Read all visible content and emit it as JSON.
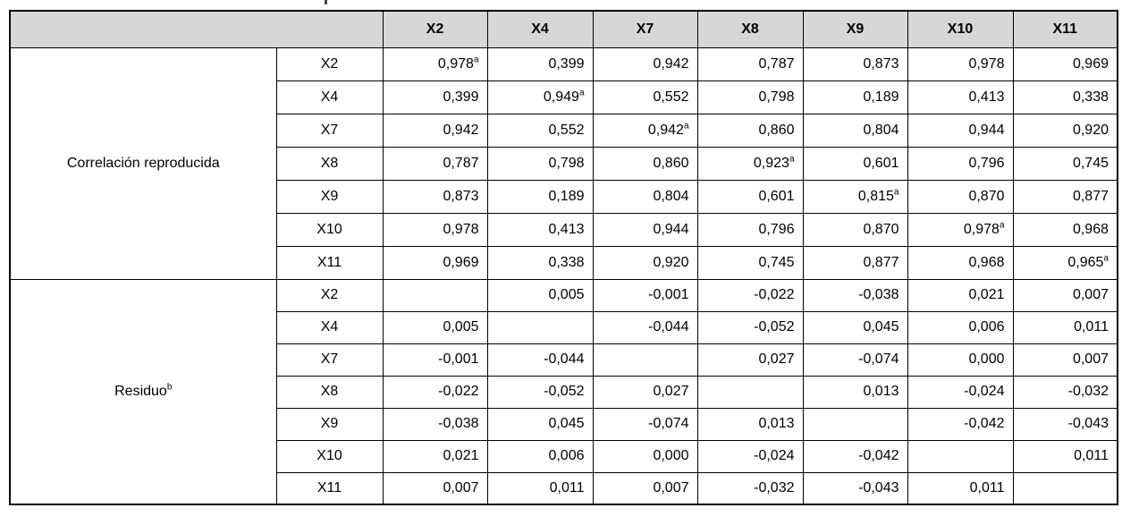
{
  "colors": {
    "header_bg": "#d7d7d7",
    "border": "#000000",
    "text": "#000000"
  },
  "table": {
    "corner_label": "",
    "columns": [
      "X2",
      "X4",
      "X7",
      "X8",
      "X9",
      "X10",
      "X11"
    ],
    "sections": [
      {
        "label": "Correlación reproducida",
        "rows": [
          {
            "label": "X2",
            "values": [
              "0,978^a",
              "0,399",
              "0,942",
              "0,787",
              "0,873",
              "0,978",
              "0,969"
            ]
          },
          {
            "label": "X4",
            "values": [
              "0,399",
              "0,949^a",
              "0,552",
              "0,798",
              "0,189",
              "0,413",
              "0,338"
            ]
          },
          {
            "label": "X7",
            "values": [
              "0,942",
              "0,552",
              "0,942^a",
              "0,860",
              "0,804",
              "0,944",
              "0,920"
            ]
          },
          {
            "label": "X8",
            "values": [
              "0,787",
              "0,798",
              "0,860",
              "0,923^a",
              "0,601",
              "0,796",
              "0,745"
            ]
          },
          {
            "label": "X9",
            "values": [
              "0,873",
              "0,189",
              "0,804",
              "0,601",
              "0,815^a",
              "0,870",
              "0,877"
            ]
          },
          {
            "label": "X10",
            "values": [
              "0,978",
              "0,413",
              "0,944",
              "0,796",
              "0,870",
              "0,978^a",
              "0,968"
            ]
          },
          {
            "label": "X11",
            "values": [
              "0,969",
              "0,338",
              "0,920",
              "0,745",
              "0,877",
              "0,968",
              "0,965^a"
            ]
          }
        ]
      },
      {
        "label": "Residuo^b",
        "rows": [
          {
            "label": "X2",
            "values": [
              "",
              "0,005",
              "-0,001",
              "-0,022",
              "-0,038",
              "0,021",
              "0,007"
            ]
          },
          {
            "label": "X4",
            "values": [
              "0,005",
              "",
              "-0,044",
              "-0,052",
              "0,045",
              "0,006",
              "0,011"
            ]
          },
          {
            "label": "X7",
            "values": [
              "-0,001",
              "-0,044",
              "",
              "0,027",
              "-0,074",
              "0,000",
              "0,007"
            ]
          },
          {
            "label": "X8",
            "values": [
              "-0,022",
              "-0,052",
              "0,027",
              "",
              "0,013",
              "-0,024",
              "-0,032"
            ]
          },
          {
            "label": "X9",
            "values": [
              "-0,038",
              "0,045",
              "-0,074",
              "0,013",
              "",
              "-0,042",
              "-0,043"
            ]
          },
          {
            "label": "X10",
            "values": [
              "0,021",
              "0,006",
              "0,000",
              "-0,024",
              "-0,042",
              "",
              "0,011"
            ]
          },
          {
            "label": "X11",
            "values": [
              "0,007",
              "0,011",
              "0,007",
              "-0,032",
              "-0,043",
              "0,011",
              ""
            ]
          }
        ]
      }
    ]
  }
}
